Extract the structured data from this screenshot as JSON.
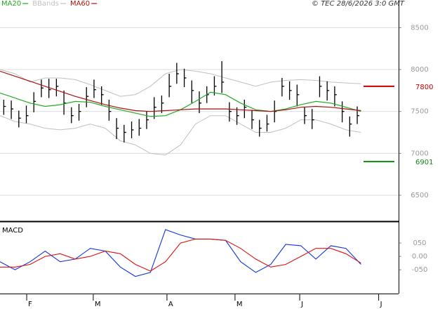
{
  "chart_data": [
    {
      "type": "ohlc",
      "source": "© TEC 28/6/2026 3:0 GMT",
      "color": "#000000",
      "x": [
        1,
        3,
        5,
        7,
        9,
        11,
        13,
        15,
        17,
        19,
        21,
        23,
        25,
        27,
        29,
        31,
        33,
        35,
        37,
        39,
        41,
        43,
        45,
        47,
        49,
        51,
        53,
        55,
        57,
        59,
        61,
        63,
        65,
        67,
        69,
        71,
        73,
        75,
        77,
        79,
        81,
        83,
        85,
        87,
        89,
        91,
        93,
        95
      ],
      "high": [
        7640,
        7630,
        7510,
        7570,
        7730,
        7880,
        7890,
        7890,
        7750,
        7550,
        7590,
        7790,
        7880,
        7800,
        7640,
        7420,
        7340,
        7380,
        7410,
        7500,
        7670,
        7690,
        7950,
        8080,
        8010,
        7870,
        7740,
        7800,
        7920,
        8100,
        7610,
        7550,
        7640,
        7520,
        7400,
        7460,
        7630,
        7900,
        7860,
        7820,
        7550,
        7530,
        7920,
        7860,
        7800,
        7620,
        7440,
        7560
      ],
      "low": [
        7460,
        7410,
        7310,
        7360,
        7490,
        7670,
        7660,
        7680,
        7460,
        7360,
        7390,
        7550,
        7660,
        7580,
        7390,
        7170,
        7130,
        7180,
        7210,
        7290,
        7410,
        7480,
        7670,
        7830,
        7790,
        7600,
        7480,
        7600,
        7690,
        7720,
        7380,
        7340,
        7420,
        7290,
        7200,
        7260,
        7370,
        7680,
        7640,
        7560,
        7350,
        7290,
        7670,
        7630,
        7560,
        7370,
        7200,
        7350
      ],
      "close": [
        7560,
        7530,
        7420,
        7450,
        7620,
        7780,
        7760,
        7800,
        7600,
        7450,
        7500,
        7680,
        7760,
        7700,
        7500,
        7300,
        7250,
        7280,
        7300,
        7400,
        7550,
        7600,
        7800,
        7950,
        7900,
        7750,
        7600,
        7700,
        7800,
        7850,
        7500,
        7450,
        7550,
        7400,
        7300,
        7350,
        7500,
        7800,
        7750,
        7700,
        7450,
        7400,
        7800,
        7750,
        7700,
        7500,
        7350,
        7450
      ],
      "series": [
        {
          "name": "MA20",
          "color": "#22aa22",
          "x": [
            0,
            4,
            8,
            12,
            16,
            20,
            24,
            28,
            32,
            36,
            40,
            44,
            48,
            52,
            56,
            60,
            64,
            68,
            72,
            76,
            80,
            84,
            88,
            92,
            96
          ],
          "values": [
            7720,
            7660,
            7600,
            7560,
            7580,
            7620,
            7610,
            7560,
            7520,
            7480,
            7440,
            7450,
            7520,
            7620,
            7730,
            7700,
            7600,
            7520,
            7500,
            7530,
            7580,
            7620,
            7600,
            7550,
            7500
          ]
        },
        {
          "name": "BBands",
          "color": "#c0c0c0",
          "x": [
            0,
            4,
            8,
            12,
            16,
            20,
            24,
            28,
            32,
            36,
            40,
            44,
            48,
            52,
            56,
            60,
            64,
            68,
            72,
            76,
            80,
            84,
            88,
            92,
            96
          ],
          "upper": [
            8000,
            7950,
            7850,
            7900,
            7900,
            7880,
            7820,
            7750,
            7680,
            7700,
            7800,
            7950,
            8000,
            7980,
            7950,
            7900,
            7850,
            7800,
            7850,
            7870,
            7880,
            7870,
            7850,
            7840,
            7830
          ],
          "lower": [
            7450,
            7380,
            7350,
            7300,
            7280,
            7300,
            7350,
            7300,
            7150,
            7100,
            7000,
            6980,
            7100,
            7350,
            7450,
            7450,
            7350,
            7250,
            7250,
            7300,
            7400,
            7400,
            7350,
            7280,
            7250
          ]
        },
        {
          "name": "MA60",
          "color": "#aa1111",
          "x": [
            0,
            4,
            8,
            12,
            16,
            20,
            24,
            28,
            32,
            36,
            40,
            44,
            48,
            52,
            56,
            60,
            64,
            68,
            72,
            76,
            80,
            84,
            88,
            92,
            96
          ],
          "values": [
            7980,
            7920,
            7860,
            7800,
            7740,
            7680,
            7630,
            7580,
            7540,
            7510,
            7500,
            7510,
            7520,
            7530,
            7530,
            7530,
            7520,
            7510,
            7500,
            7520,
            7550,
            7560,
            7550,
            7530,
            7510
          ]
        }
      ],
      "levels": [
        {
          "value": 7800,
          "color": "#cc0000"
        },
        {
          "value": 6901,
          "color": "#118811"
        }
      ],
      "xlim": [
        0,
        106
      ],
      "ylim": [
        6190,
        8830
      ],
      "yticks": [
        6500,
        7000,
        7500,
        8000,
        8500
      ],
      "grid": true
    },
    {
      "type": "line",
      "title": "MACD",
      "series": [
        {
          "color": "#1133dd",
          "x": [
            0,
            4,
            8,
            12,
            16,
            20,
            24,
            28,
            32,
            36,
            40,
            44,
            48,
            52,
            56,
            60,
            64,
            68,
            72,
            76,
            80,
            84,
            88,
            92,
            96
          ],
          "values": [
            -20,
            -50,
            -20,
            20,
            -20,
            -10,
            30,
            20,
            -40,
            -75,
            -60,
            100,
            80,
            65,
            65,
            60,
            -20,
            -60,
            -30,
            45,
            40,
            -10,
            40,
            30,
            -30
          ]
        },
        {
          "color": "#dd1111",
          "x": [
            0,
            4,
            8,
            12,
            16,
            20,
            24,
            28,
            32,
            36,
            40,
            44,
            48,
            52,
            56,
            60,
            64,
            68,
            72,
            76,
            80,
            84,
            88,
            92,
            96
          ],
          "values": [
            -40,
            -40,
            -30,
            0,
            10,
            -10,
            0,
            20,
            10,
            -30,
            -55,
            -20,
            50,
            65,
            65,
            60,
            30,
            -10,
            -40,
            -30,
            0,
            30,
            30,
            10,
            -25
          ]
        }
      ],
      "xlim": [
        0,
        106
      ],
      "ylim": [
        -139,
        129
      ],
      "yticks": [
        {
          "value": 50,
          "label": "050"
        },
        {
          "value": 0,
          "label": "0.00"
        },
        {
          "value": -50,
          "label": "-050"
        }
      ],
      "xticks": [
        {
          "value": 7.1,
          "label": "F"
        },
        {
          "value": 24.8,
          "label": "M"
        },
        {
          "value": 44.4,
          "label": "A"
        },
        {
          "value": 62.5,
          "label": "M"
        },
        {
          "value": 79.7,
          "label": "J"
        },
        {
          "value": 100.7,
          "label": "J"
        }
      ]
    }
  ]
}
